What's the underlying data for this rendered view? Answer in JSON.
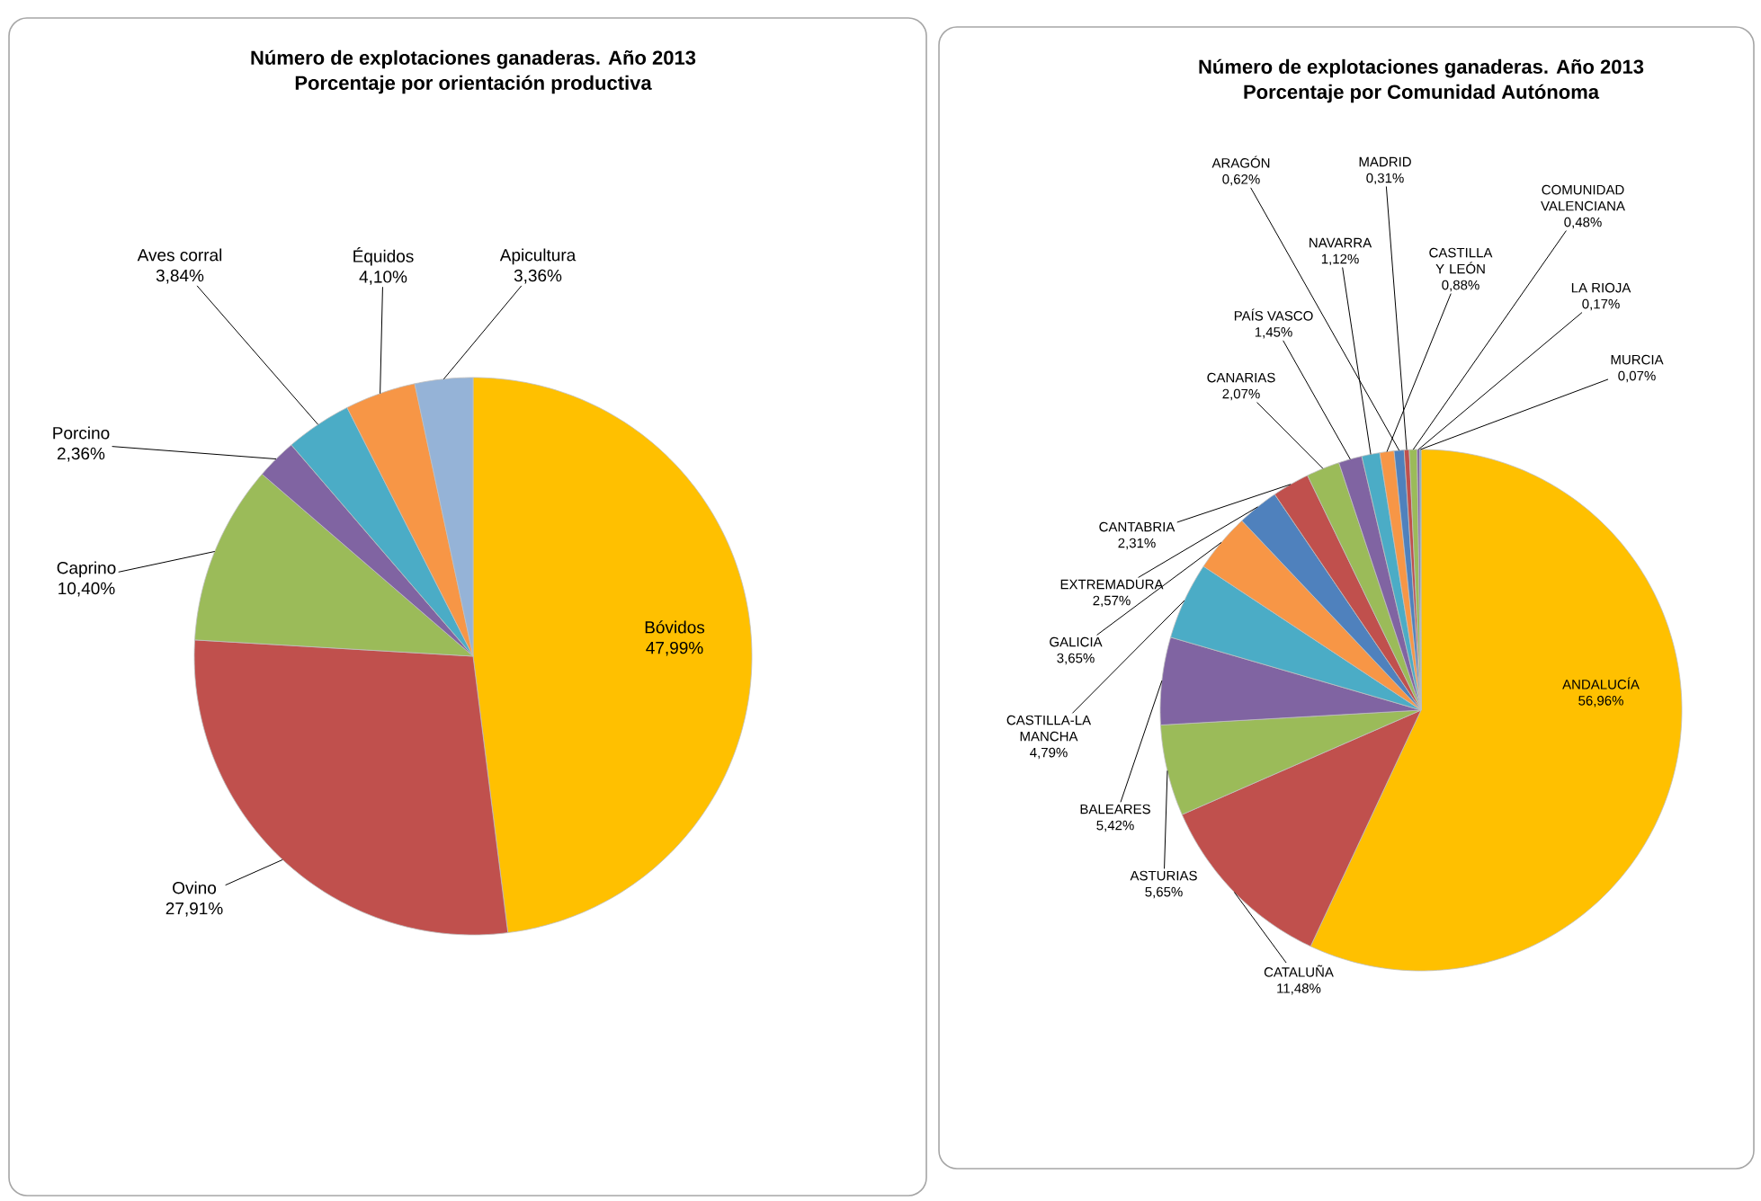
{
  "chart_data": [
    {
      "type": "pie",
      "title": "Número de explotaciones ganaderas. Año 2013",
      "subtitle": "Porcentaje por orientación productiva",
      "categories": [
        "Bóvidos",
        "Ovino",
        "Caprino",
        "Porcino",
        "Aves corral",
        "Équidos",
        "Apicultura"
      ],
      "values": [
        47.99,
        27.91,
        10.4,
        2.36,
        3.84,
        4.1,
        3.36
      ],
      "value_labels": [
        "47,99%",
        "27,91%",
        "10,40%",
        "2,36%",
        "3,84%",
        "4,10%",
        "3,36%"
      ],
      "colors": [
        "#ffc000",
        "#c0504d",
        "#9bbb59",
        "#8064a2",
        "#4bacc6",
        "#f79646",
        "#95b3d7"
      ]
    },
    {
      "type": "pie",
      "title": "Número de explotaciones ganaderas. Año 2013",
      "subtitle": "Porcentaje por Comunidad Autónoma",
      "categories": [
        "ANDALUCÍA",
        "CATALUÑA",
        "ASTURIAS",
        "BALEARES",
        "CASTILLA-LA MANCHA",
        "GALICIA",
        "EXTREMADURA",
        "CANTABRIA",
        "CANARIAS",
        "PAÍS VASCO",
        "NAVARRA",
        "CASTILLA Y LEÓN",
        "ARAGÓN",
        "MADRID",
        "COMUNIDAD VALENCIANA",
        "LA RIOJA",
        "MURCIA"
      ],
      "values": [
        56.96,
        11.48,
        5.65,
        5.42,
        4.79,
        3.65,
        2.57,
        2.31,
        2.07,
        1.45,
        1.12,
        0.88,
        0.62,
        0.31,
        0.48,
        0.17,
        0.07
      ],
      "value_labels": [
        "56,96%",
        "11,48%",
        "5,65%",
        "5,42%",
        "4,79%",
        "3,65%",
        "2,57%",
        "2,31%",
        "2,07%",
        "1,45%",
        "1,12%",
        "0,88%",
        "0,62%",
        "0,31%",
        "0,48%",
        "0,17%",
        "0,07%"
      ],
      "colors": [
        "#ffc000",
        "#c0504d",
        "#9bbb59",
        "#8064a2",
        "#4bacc6",
        "#f79646",
        "#4f81bd",
        "#c0504d",
        "#9bbb59",
        "#8064a2",
        "#4bacc6",
        "#f79646",
        "#4f81bd",
        "#c0504d",
        "#9bbb59",
        "#8064a2",
        "#4bacc6"
      ]
    }
  ]
}
